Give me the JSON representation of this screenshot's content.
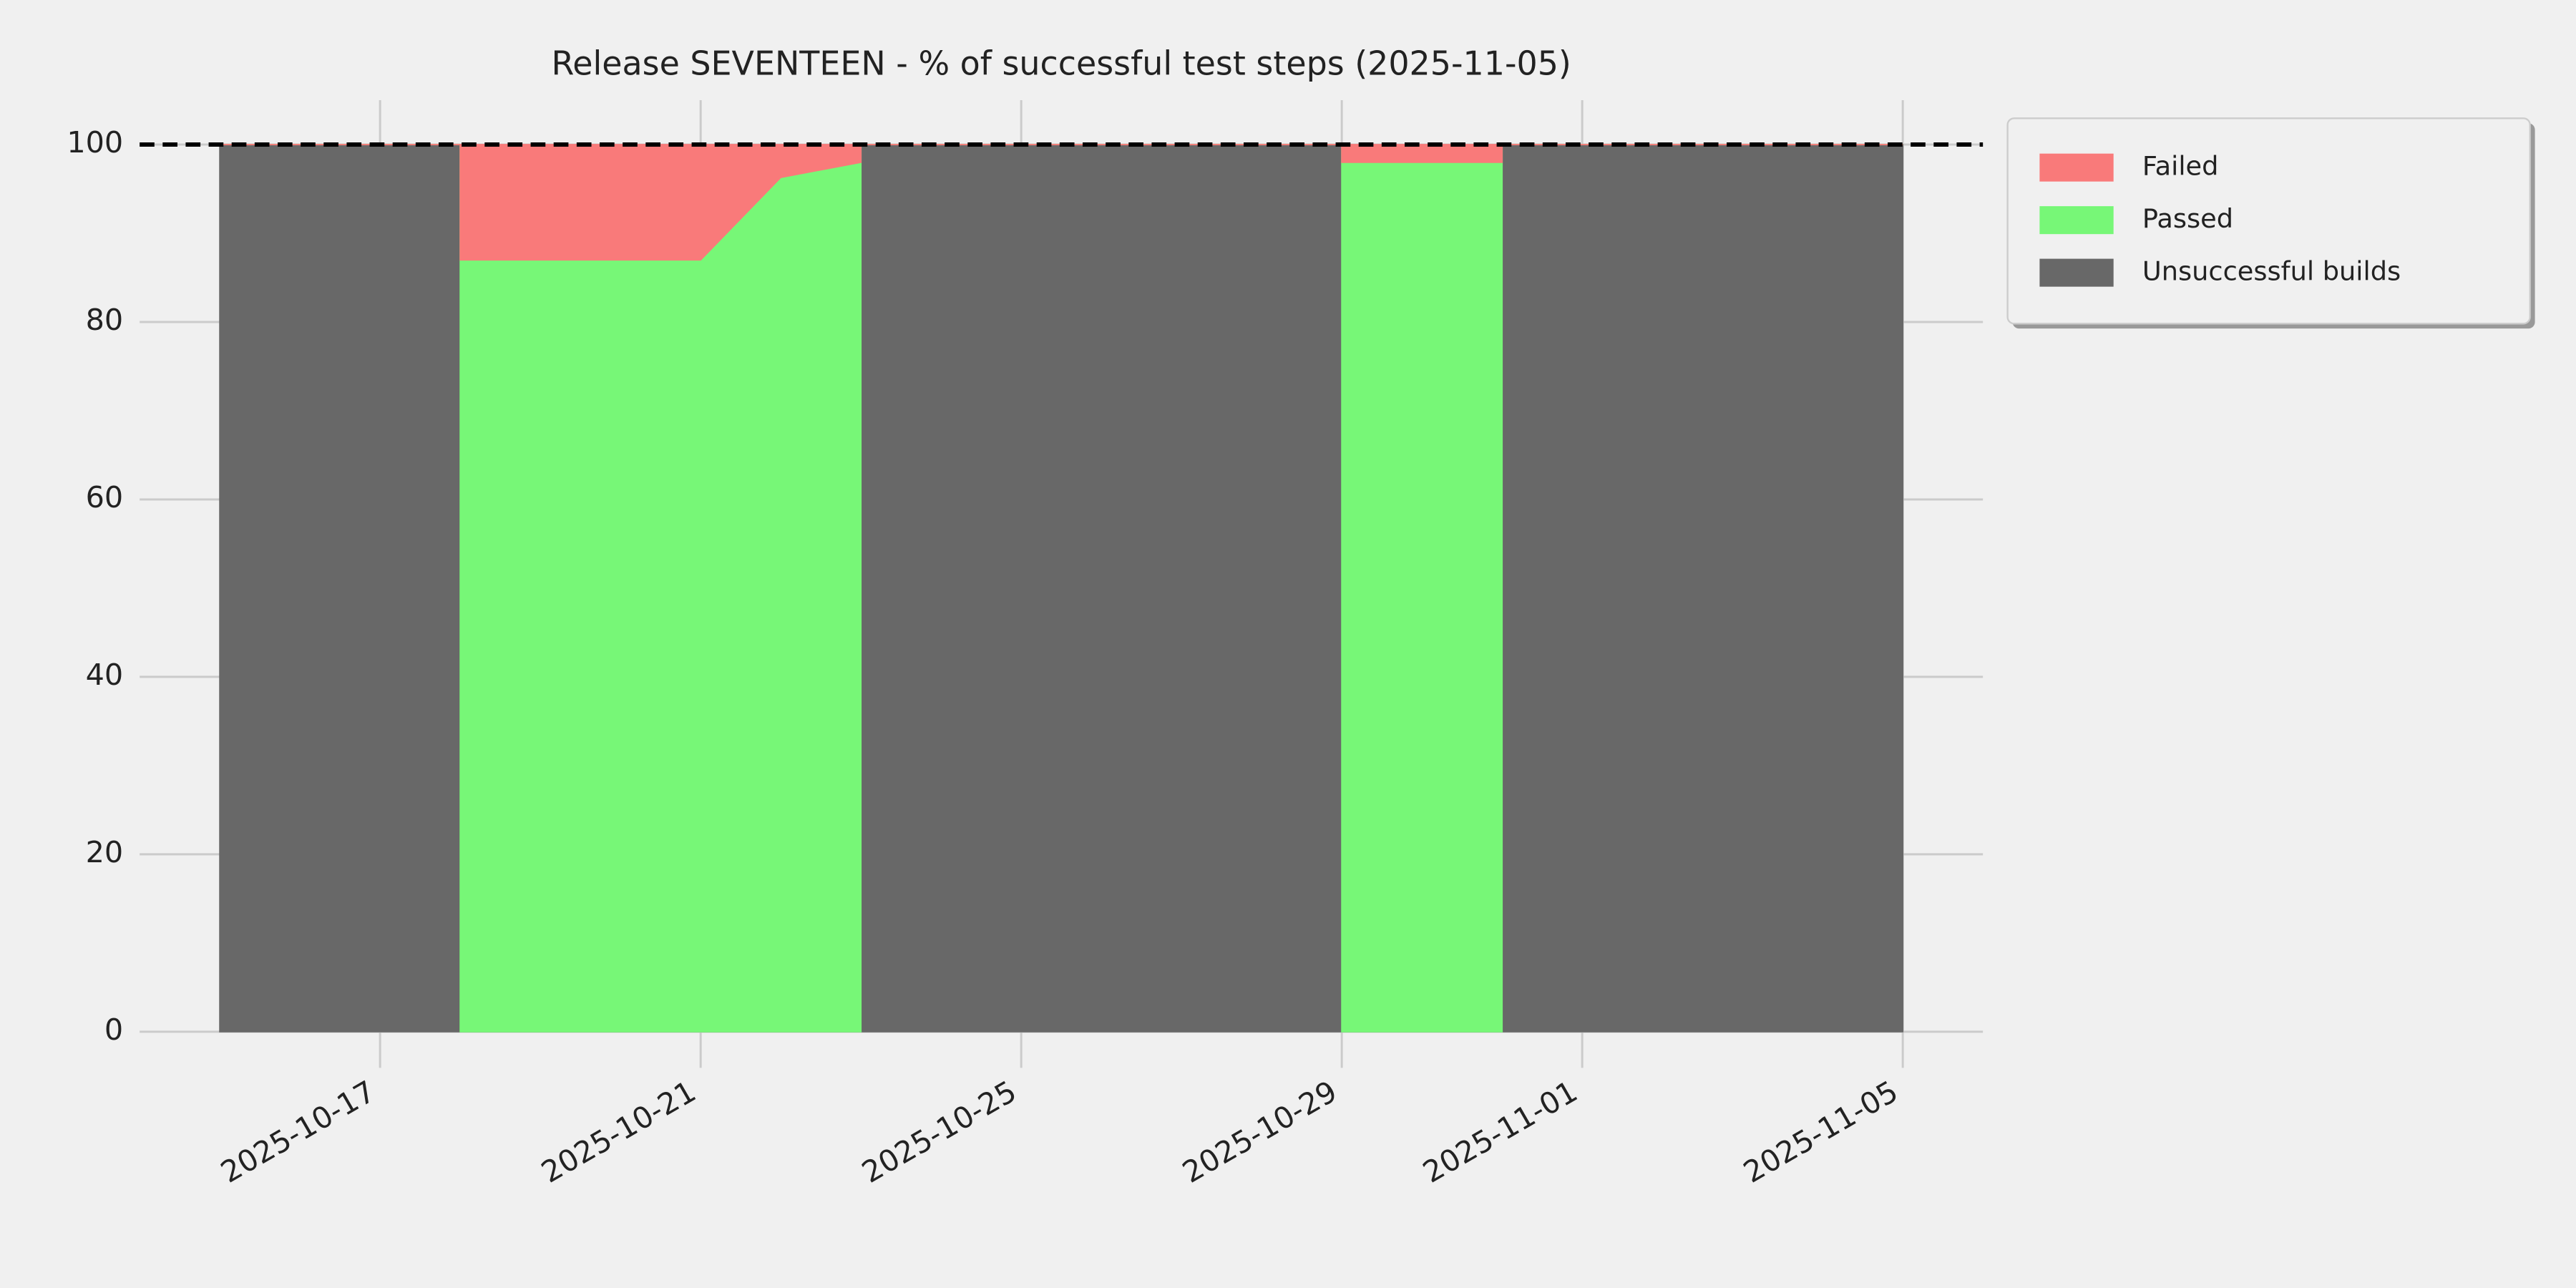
{
  "chart_data": {
    "type": "stackplot",
    "title": "Release SEVENTEEN - % of successful test steps (2025-11-05)",
    "x": [
      "2025-10-15",
      "2025-10-18",
      "2025-10-18",
      "2025-10-19",
      "2025-10-20",
      "2025-10-21",
      "2025-10-22",
      "2025-10-23",
      "2025-10-23",
      "2025-10-29",
      "2025-10-29",
      "2025-10-31",
      "2025-10-31",
      "2025-11-05"
    ],
    "series": [
      {
        "name": "Failed",
        "color": "#f97a7a",
        "values": [
          0,
          0,
          13,
          13,
          13,
          13,
          3.7,
          2,
          0,
          0,
          2,
          2,
          0,
          0
        ]
      },
      {
        "name": "Passed",
        "color": "#77f777",
        "values": [
          0,
          0,
          87,
          87,
          87,
          87,
          96.3,
          98,
          0,
          0,
          98,
          98,
          0,
          0
        ]
      },
      {
        "name": "Unsuccessful builds",
        "color": "#686868",
        "values": [
          100,
          100,
          0,
          0,
          0,
          0,
          0,
          0,
          100,
          100,
          0,
          0,
          100,
          100
        ]
      }
    ],
    "xlim": [
      "2025-10-14",
      "2025-11-06"
    ],
    "xticks": [
      "2025-10-17",
      "2025-10-21",
      "2025-10-25",
      "2025-10-29",
      "2025-11-01",
      "2025-11-05"
    ],
    "ylim": [
      0,
      105
    ],
    "yticks": [
      0,
      20,
      40,
      60,
      80,
      100
    ],
    "grid": true,
    "reference_line": 100,
    "legend": "outside upper right"
  }
}
